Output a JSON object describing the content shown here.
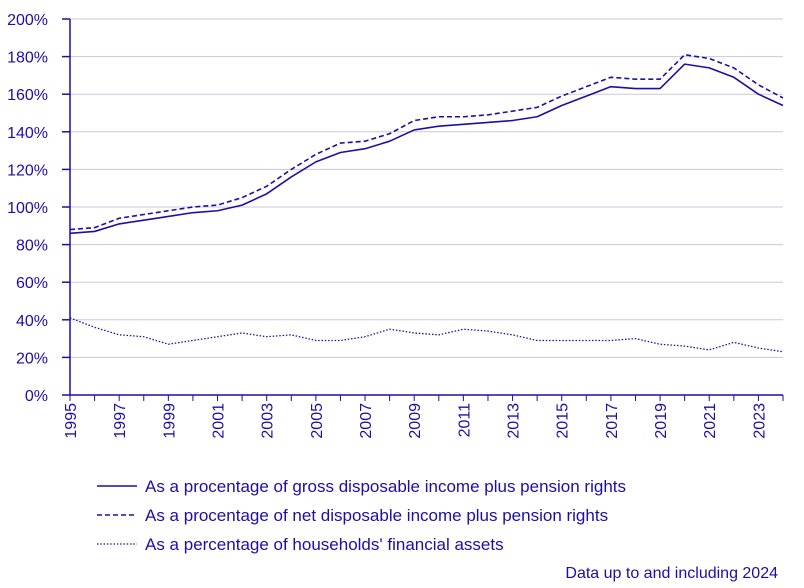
{
  "colors": {
    "ink": "#1c0fa6",
    "grid": "#c8c8dc"
  },
  "footnote": "Data up to and including 2024",
  "chart_data": {
    "type": "line",
    "title": "",
    "xlabel": "",
    "ylabel": "",
    "ylim": [
      0,
      200
    ],
    "xlim": [
      1995,
      2024
    ],
    "y_ticks": [
      "0%",
      "20%",
      "40%",
      "60%",
      "80%",
      "100%",
      "120%",
      "140%",
      "160%",
      "180%",
      "200%"
    ],
    "x_ticks": [
      "1995",
      "1997",
      "1999",
      "2001",
      "2003",
      "2005",
      "2007",
      "2009",
      "2011",
      "2013",
      "2015",
      "2017",
      "2019",
      "2021",
      "2023"
    ],
    "grid": "horizontal",
    "legend_position": "bottom",
    "x": [
      1995,
      1996,
      1997,
      1998,
      1999,
      2000,
      2001,
      2002,
      2003,
      2004,
      2005,
      2006,
      2007,
      2008,
      2009,
      2010,
      2011,
      2012,
      2013,
      2014,
      2015,
      2016,
      2017,
      2018,
      2019,
      2020,
      2021,
      2022,
      2023,
      2024
    ],
    "series": [
      {
        "name": "As a procentage of gross disposable income plus pension rights",
        "style": "solid",
        "values": [
          86,
          87,
          91,
          93,
          95,
          97,
          98,
          101,
          107,
          116,
          124,
          129,
          131,
          135,
          141,
          143,
          144,
          145,
          146,
          148,
          154,
          159,
          164,
          163,
          163,
          176,
          174,
          169,
          160,
          154
        ]
      },
      {
        "name": "As a procentage of net disposable income plus pension rights",
        "style": "dashed",
        "values": [
          88,
          89,
          94,
          96,
          98,
          100,
          101,
          105,
          111,
          120,
          128,
          134,
          135,
          139,
          146,
          148,
          148,
          149,
          151,
          153,
          159,
          164,
          169,
          168,
          168,
          181,
          179,
          174,
          165,
          158
        ]
      },
      {
        "name": "As a percentage of households' financial assets",
        "style": "dotted",
        "values": [
          41,
          36,
          32,
          31,
          27,
          29,
          31,
          33,
          31,
          32,
          29,
          29,
          31,
          35,
          33,
          32,
          35,
          34,
          32,
          29,
          29,
          29,
          29,
          30,
          27,
          26,
          24,
          28,
          25,
          23
        ]
      }
    ]
  }
}
